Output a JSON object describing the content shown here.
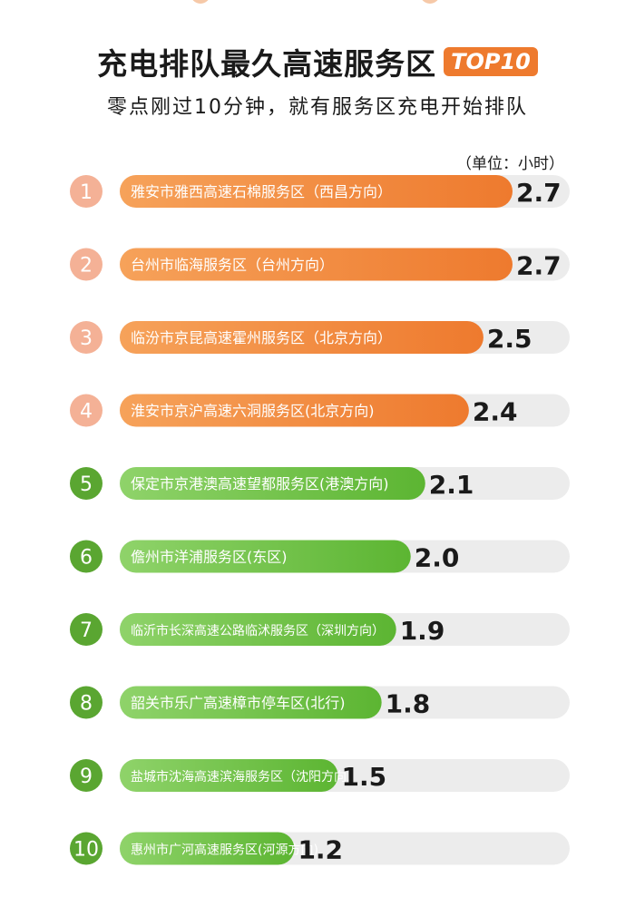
{
  "header": {
    "title": "充电排队最久高速服务区",
    "badge": "TOP10",
    "subtitle": "零点刚过10分钟，就有服务区充电开始排队",
    "unit": "（单位：小时）"
  },
  "colors": {
    "orange_rank_circle": "#f4b196",
    "orange_bar_start": "#f6a25a",
    "orange_bar_end": "#ee7a2e",
    "green_rank_circle": "#5aa631",
    "green_bar_start": "#8fd36a",
    "green_bar_end": "#5cb532",
    "track": "#ececec",
    "value_text": "#1a1a1a"
  },
  "chart_data": {
    "type": "bar",
    "orientation": "horizontal",
    "ranks": [
      "1",
      "2",
      "3",
      "4",
      "5",
      "6",
      "7",
      "8",
      "9",
      "10"
    ],
    "categories": [
      "雅安市雅西高速石棉服务区（西昌方向）",
      "台州市临海服务区（台州方向）",
      "临汾市京昆高速霍州服务区（北京方向）",
      "淮安市京沪高速六洞服务区(北京方向)",
      "保定市京港澳高速望都服务区(港澳方向)",
      "儋州市洋浦服务区(东区)",
      "临沂市长深高速公路临沭服务区（深圳方向）",
      "韶关市乐广高速樟市停车区(北行)",
      "盐城市沈海高速滨海服务区（沈阳方向）",
      "惠州市广河高速服务区(河源方向)"
    ],
    "values": [
      2.7,
      2.7,
      2.5,
      2.4,
      2.1,
      2.0,
      1.9,
      1.8,
      1.5,
      1.2
    ],
    "value_labels": [
      "2.7",
      "2.7",
      "2.5",
      "2.4",
      "2.1",
      "2.0",
      "1.9",
      "1.8",
      "1.5",
      "1.2"
    ],
    "xlim": [
      0,
      3.0
    ],
    "unit": "小时",
    "orange_ranks": [
      1,
      2,
      3,
      4
    ],
    "green_ranks": [
      5,
      6,
      7,
      8,
      9,
      10
    ]
  }
}
